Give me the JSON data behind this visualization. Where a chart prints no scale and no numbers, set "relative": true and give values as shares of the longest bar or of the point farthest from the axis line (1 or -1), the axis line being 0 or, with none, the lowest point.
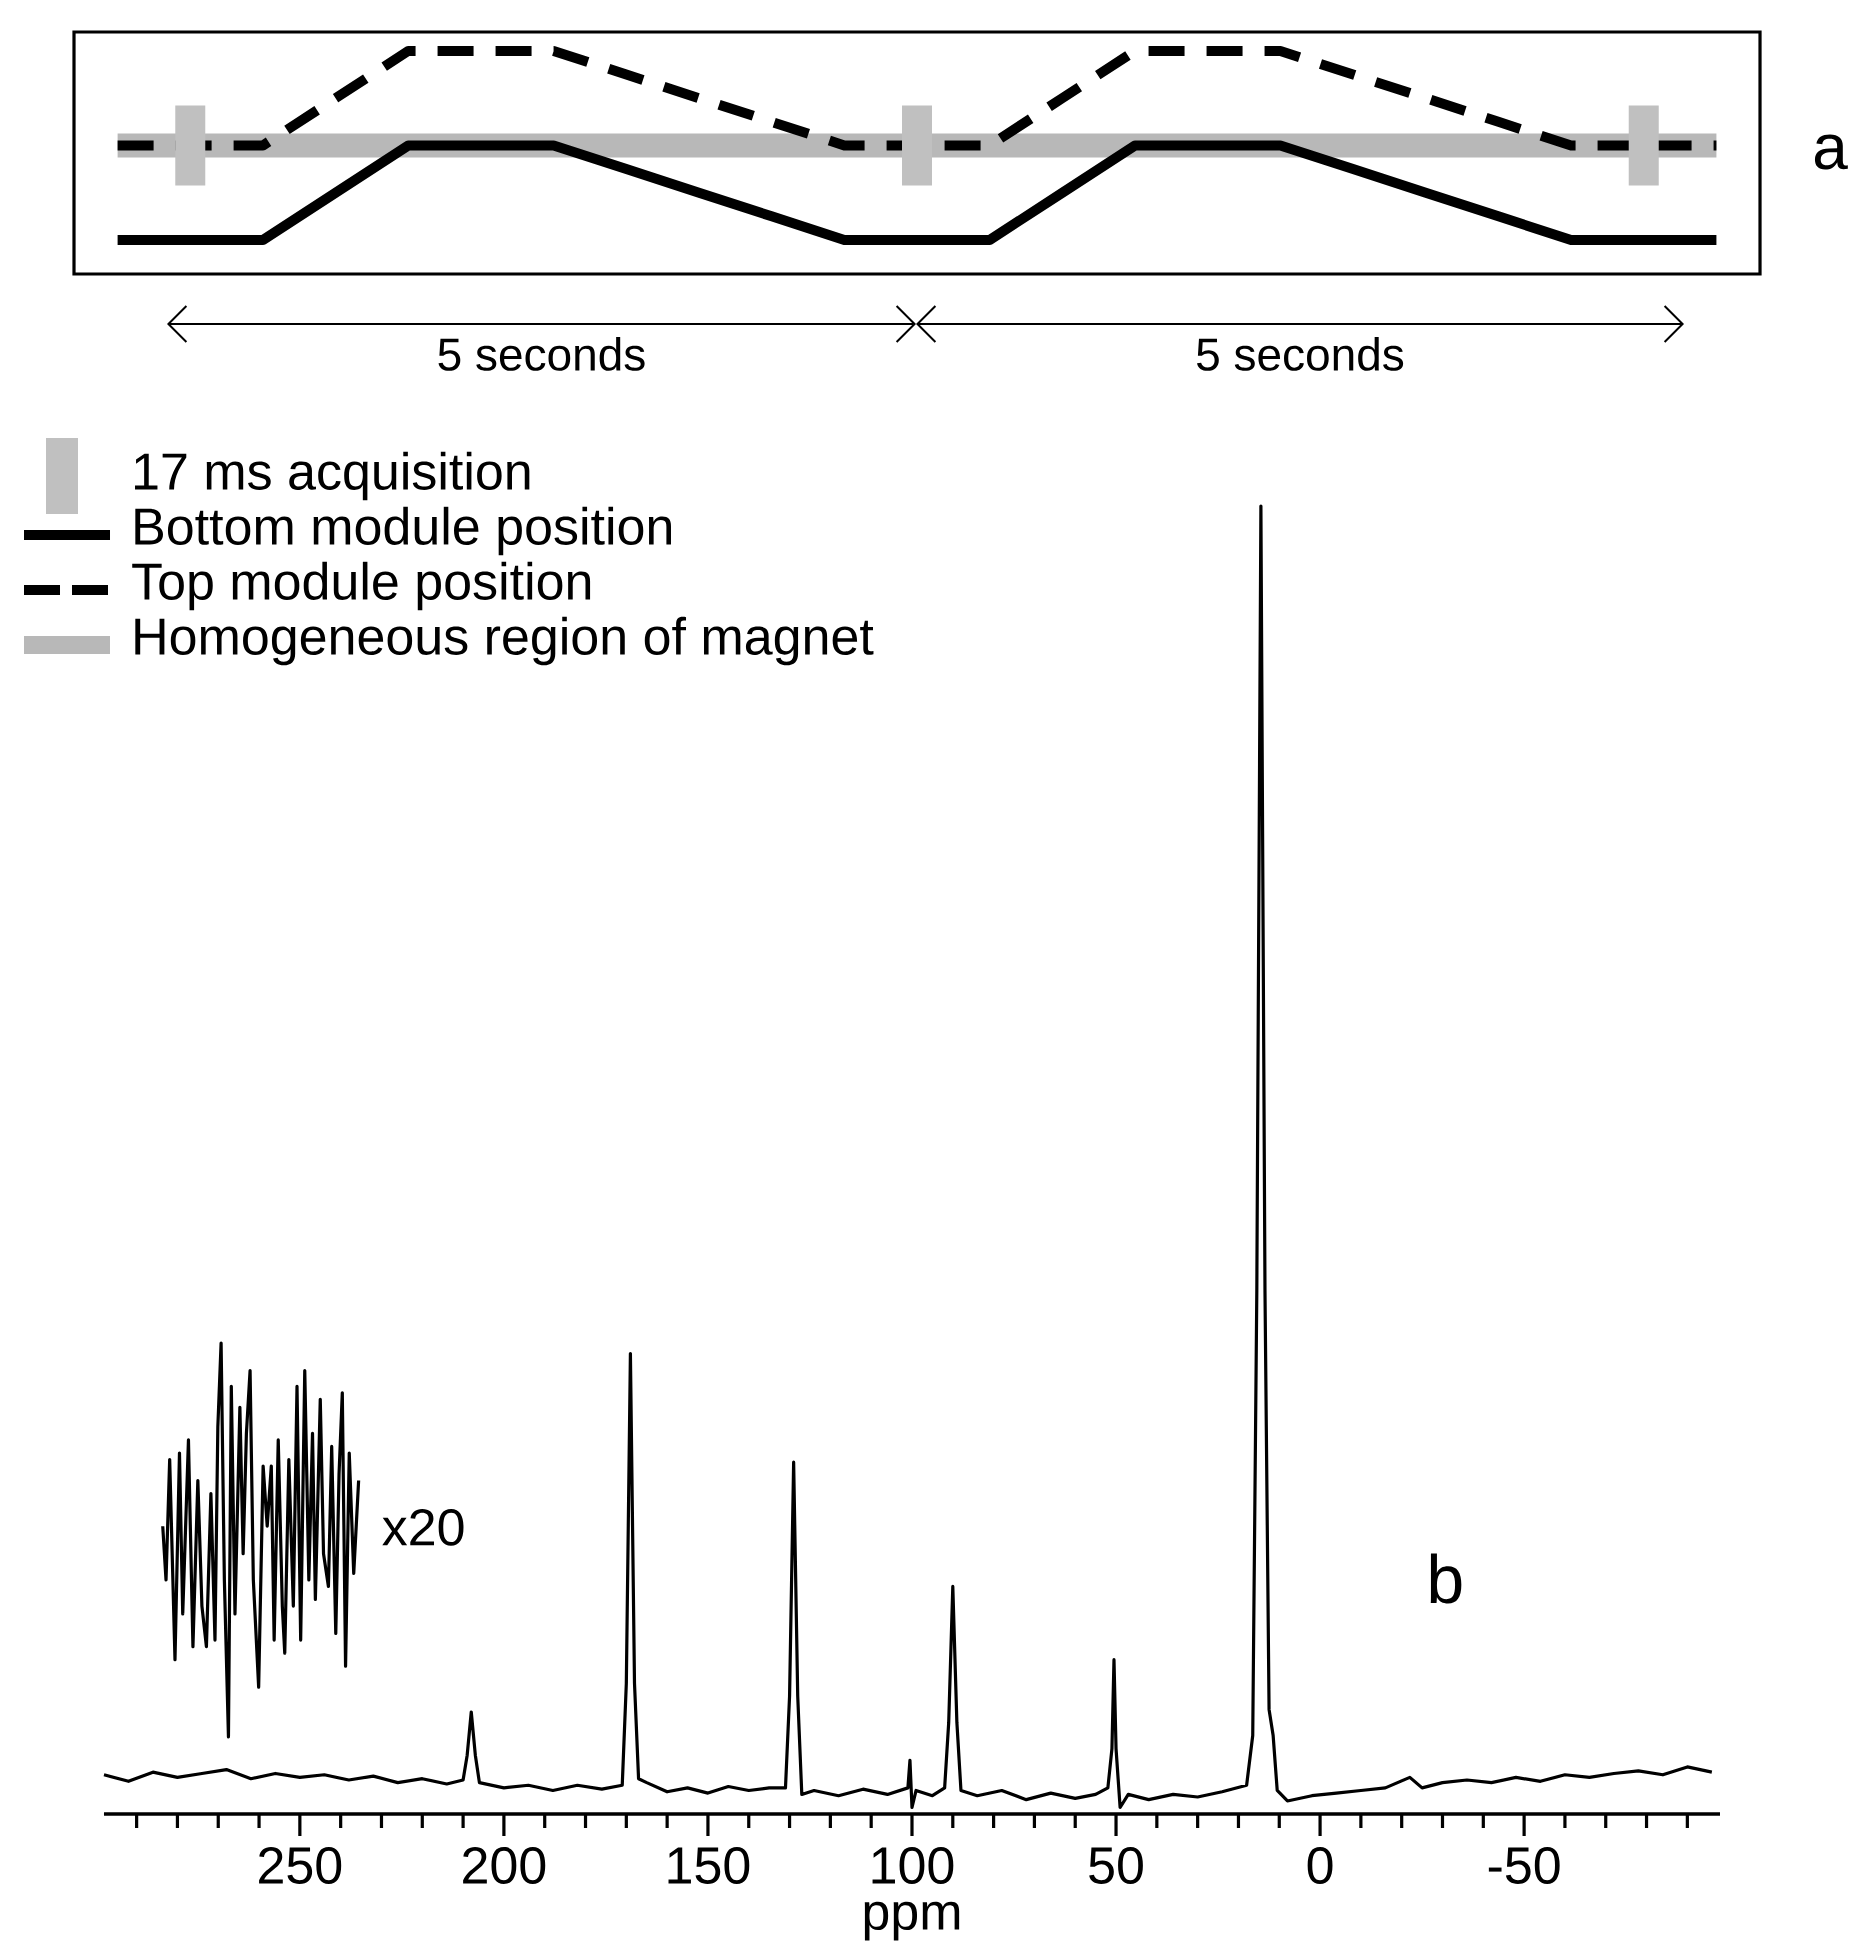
{
  "chart_data": [
    {
      "type": "line",
      "relative": true,
      "legend": "bottom left",
      "categories": [
        null,
        null,
        null,
        null,
        null,
        null,
        null,
        null,
        null,
        null,
        null,
        null,
        null,
        null,
        null,
        null,
        null,
        null,
        null,
        null,
        null,
        null,
        null
      ],
      "series": [
        {
          "name": "Bottom module position",
          "color": "#000000",
          "line_style": "solid",
          "values": [
            0,
            0,
            0,
            0.25,
            0.5,
            0.5,
            0.5,
            0.375,
            0.25,
            0.125,
            0,
            0,
            0,
            0.25,
            0.5,
            0.5,
            0.5,
            0.375,
            0.25,
            0.125,
            0,
            0,
            0
          ]
        },
        {
          "name": "Top module position",
          "color": "#000000",
          "line_style": "dashed",
          "values": [
            0.5,
            0.5,
            0.5,
            0.75,
            1,
            1,
            1,
            0.875,
            0.75,
            0.625,
            0.5,
            0.5,
            0.5,
            0.75,
            1,
            1,
            1,
            0.875,
            0.75,
            0.625,
            0.5,
            0.5,
            0.5
          ]
        },
        {
          "name": "Homogeneous region of magnet",
          "color": "#b8b8b8",
          "line_style": "solid",
          "values": [
            0.5,
            0.5,
            0.5,
            0.5,
            0.5,
            0.5,
            0.5,
            0.5,
            0.5,
            0.5,
            0.5,
            0.5,
            0.5,
            0.5,
            0.5,
            0.5,
            0.5,
            0.5,
            0.5,
            0.5,
            0.5,
            0.5,
            0.5
          ]
        }
      ],
      "annotations": [
        "5 seconds",
        "5 seconds",
        "a",
        "17 ms acquisition"
      ]
    },
    {
      "type": "line",
      "relative": true,
      "xlim": [
        298,
        -98
      ],
      "xlabel": "ppm",
      "xticks": [
        {
          "value": 290,
          "label": null
        },
        {
          "value": 280,
          "label": null
        },
        {
          "value": 270,
          "label": null
        },
        {
          "value": 260,
          "label": null
        },
        250,
        {
          "value": 240,
          "label": null
        },
        {
          "value": 230,
          "label": null
        },
        {
          "value": 220,
          "label": null
        },
        {
          "value": 210,
          "label": null
        },
        200,
        {
          "value": 190,
          "label": null
        },
        {
          "value": 180,
          "label": null
        },
        {
          "value": 170,
          "label": null
        },
        {
          "value": 160,
          "label": null
        },
        150,
        {
          "value": 140,
          "label": null
        },
        {
          "value": 130,
          "label": null
        },
        {
          "value": 120,
          "label": null
        },
        {
          "value": 110,
          "label": null
        },
        100,
        {
          "value": 90,
          "label": null
        },
        {
          "value": 80,
          "label": null
        },
        {
          "value": 70,
          "label": null
        },
        {
          "value": 60,
          "label": null
        },
        50,
        {
          "value": 40,
          "label": null
        },
        {
          "value": 30,
          "label": null
        },
        {
          "value": 20,
          "label": null
        },
        {
          "value": 10,
          "label": null
        },
        0,
        {
          "value": -10,
          "label": null
        },
        {
          "value": -20,
          "label": null
        },
        {
          "value": -30,
          "label": null
        },
        {
          "value": -40,
          "label": null
        },
        -50,
        {
          "value": -60,
          "label": null
        },
        {
          "value": -70,
          "label": null
        },
        {
          "value": -80,
          "label": null
        },
        {
          "value": -90,
          "label": null
        }
      ],
      "series": [
        {
          "color": "#000000",
          "x": [
            298,
            292,
            286,
            280,
            274,
            268,
            262,
            256,
            250,
            244,
            238,
            232,
            226,
            220,
            214,
            210,
            209,
            208,
            207,
            206,
            200,
            194,
            188,
            182,
            176,
            171,
            170,
            169,
            168,
            167,
            165,
            160,
            155,
            150,
            145,
            140,
            135,
            131,
            130,
            129,
            128,
            127,
            124,
            118,
            112,
            106,
            101,
            100.5,
            100,
            99,
            95,
            92,
            91,
            90,
            89,
            88,
            84,
            78,
            72,
            66,
            60,
            55,
            52,
            51,
            50.5,
            50,
            49,
            47,
            42,
            36,
            30,
            24,
            18,
            16.5,
            15.5,
            14.5,
            13.5,
            12.5,
            11.5,
            10.5,
            8,
            2,
            -4,
            -10,
            -16,
            -22,
            -25,
            -30,
            -36,
            -42,
            -48,
            -54,
            -60,
            -66,
            -72,
            -78,
            -84,
            -90,
            -96
          ],
          "values": [
            0.03,
            0.025,
            0.032,
            0.028,
            0.031,
            0.034,
            0.027,
            0.031,
            0.028,
            0.03,
            0.026,
            0.029,
            0.024,
            0.027,
            0.023,
            0.026,
            0.045,
            0.078,
            0.045,
            0.024,
            0.02,
            0.022,
            0.018,
            0.022,
            0.019,
            0.022,
            0.1,
            0.352,
            0.1,
            0.027,
            0.024,
            0.017,
            0.02,
            0.016,
            0.021,
            0.018,
            0.02,
            0.02,
            0.09,
            0.269,
            0.09,
            0.015,
            0.018,
            0.014,
            0.019,
            0.015,
            0.02,
            0.041,
            0.005,
            0.018,
            0.014,
            0.02,
            0.07,
            0.174,
            0.07,
            0.018,
            0.014,
            0.018,
            0.011,
            0.016,
            0.012,
            0.015,
            0.02,
            0.05,
            0.118,
            0.05,
            0.005,
            0.015,
            0.011,
            0.015,
            0.013,
            0.017,
            0.022,
            0.06,
            0.4,
            1.0,
            0.4,
            0.08,
            0.06,
            0.018,
            0.01,
            0.014,
            0.016,
            0.018,
            0.02,
            0.028,
            0.02,
            0.024,
            0.026,
            0.024,
            0.028,
            0.025,
            0.03,
            0.028,
            0.031,
            0.033,
            0.03,
            0.036,
            0.032
          ]
        },
        {
          "name": "x20",
          "color": "#000000",
          "x": [
            283.6,
            282.8,
            281.9,
            280.6,
            279.5,
            278.7,
            277.3,
            276.2,
            275.0,
            274.0,
            272.9,
            271.8,
            270.8,
            270.1,
            269.3,
            268.5,
            267.5,
            266.8,
            265.9,
            264.7,
            263.9,
            263.1,
            262.2,
            261.4,
            260.1,
            259.0,
            258.0,
            257.0,
            256.3,
            255.3,
            254.3,
            253.7,
            252.7,
            251.6,
            250.7,
            249.8,
            248.8,
            247.8,
            246.9,
            246.2,
            245.0,
            244.2,
            243.0,
            242.2,
            241.2,
            240.4,
            239.6,
            238.8,
            237.9,
            236.8,
            235.6
          ],
          "values": [
            0.22,
            0.179,
            0.271,
            0.118,
            0.276,
            0.153,
            0.286,
            0.128,
            0.255,
            0.159,
            0.128,
            0.245,
            0.133,
            0.296,
            0.36,
            0.179,
            0.059,
            0.327,
            0.153,
            0.311,
            0.199,
            0.291,
            0.339,
            0.179,
            0.097,
            0.266,
            0.22,
            0.266,
            0.133,
            0.286,
            0.159,
            0.123,
            0.271,
            0.159,
            0.327,
            0.133,
            0.339,
            0.179,
            0.291,
            0.164,
            0.317,
            0.199,
            0.174,
            0.281,
            0.138,
            0.26,
            0.322,
            0.113,
            0.276,
            0.184,
            0.255
          ]
        }
      ],
      "annotations": [
        "b"
      ]
    }
  ]
}
